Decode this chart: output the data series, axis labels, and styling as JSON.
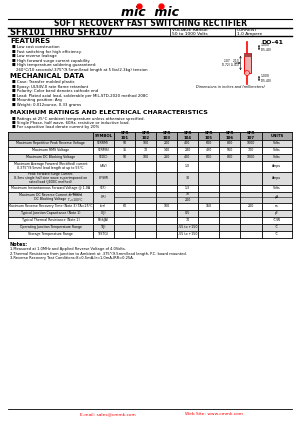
{
  "title": "SOFT RECOVERY FAST SWITCHING RECTIFIER",
  "part_number": "SFR101 THRU SFR107",
  "voltage_range_label": "VOLTAGE RANGE",
  "voltage_range_val": "50 to 1000 Volts",
  "current_label": "CURRENT",
  "current_val": "1.0 Ampere",
  "package": "DO-41",
  "features_title": "FEATURES",
  "features": [
    "Low cost construction",
    "Fast switching for high efficiency.",
    "Low reverse leakage",
    "High forward surge current capability",
    "High temperature soldering guaranteed:",
    "260°C/10 seconds/.375\"(9.5mm)lead length at 5 lbs(2.3kg) tension"
  ],
  "mech_title": "MECHANICAL DATA",
  "mech": [
    "Case: Transfer molded plastic",
    "Epoxy: UL94V-0 rate flame retardant",
    "Polarity: Color band denotes cathode end",
    "Lead: Plated axial lead, solderable per MIL-STD-2020 method 208C",
    "Mounting position: Any",
    "Weight: 0.012ounce, 0.33 grams"
  ],
  "ratings_title": "MAXIMUM RATINGS AND ELECTRICAL CHARACTERISTICS",
  "ratings_notes": [
    "Ratings at 25°C ambient temperature unless otherwise specified.",
    "Single Phase, half wave, 60Hz, resistive or inductive load.",
    "For capacitive load derate current by 20%"
  ],
  "table_params": [
    "Maximum Repetitive Peak Reverse Voltage",
    "Maximum RMS Voltage",
    "Maximum DC Blocking Voltage",
    "Maximum Average Forward (Rectified) current\n0.375\"(9.5mm) lead length at up to 55°C",
    "Peak Forward Surge Current\n8.3ms single half sine wave superimposed on\nrated load (JEDEC method)",
    "Maximum Instantaneous Forward Voltage @ 1.0A",
    "Maximum DC Reverse Current at Rated\nDC Blocking Voltage",
    "Maximum Reverse Recovery Time (Note 3) TA=25°C",
    "Typical Junction Capacitance (Note 1)",
    "Typical Thermal Resistance (Note 2)",
    "Operating Junction Temperature Range",
    "Storage Temperature Range"
  ],
  "table_syms": [
    "V(RRM)",
    "V(RMS)",
    "V(DC)",
    "I(AV)",
    "I(FSM)",
    "V(F)",
    "I(R)",
    "t(rr)",
    "C(J)",
    "R(thJA)",
    "T(J)",
    "T(STG)"
  ],
  "table_sym_sub": [
    null,
    null,
    null,
    null,
    null,
    null,
    [
      "Tₐ=25°C",
      "Tₐ=100°C"
    ],
    null,
    null,
    null,
    null,
    null
  ],
  "table_vals": [
    [
      "50",
      "100",
      "200",
      "400",
      "600",
      "800",
      "1000"
    ],
    [
      "35",
      "70",
      "140",
      "280",
      "420",
      "560",
      "700"
    ],
    [
      "50",
      "100",
      "200",
      "400",
      "600",
      "800",
      "1000"
    ],
    [
      "",
      "",
      "",
      "1.0",
      "",
      "",
      ""
    ],
    [
      "",
      "",
      "",
      "30",
      "",
      "",
      ""
    ],
    [
      "",
      "",
      "",
      "1.3",
      "",
      "",
      ""
    ],
    [
      "",
      "",
      "",
      "10",
      "",
      "",
      ""
    ],
    [
      "60",
      "",
      "100",
      "",
      "150",
      "",
      "200"
    ],
    [
      "",
      "",
      "",
      "0.5",
      "",
      "",
      ""
    ],
    [
      "",
      "",
      "",
      "70",
      "",
      "",
      ""
    ],
    [
      "",
      "",
      "",
      "-55 to +150",
      "",
      "",
      ""
    ],
    [
      "",
      "",
      "",
      "-55 to +150",
      "",
      "",
      ""
    ]
  ],
  "table_vals2": [
    null,
    null,
    null,
    null,
    null,
    null,
    [
      "",
      "",
      "",
      "200",
      "",
      "",
      ""
    ],
    null,
    null,
    null,
    null,
    null
  ],
  "table_units": [
    "Volts",
    "Volts",
    "Volts",
    "Amps",
    "Amps",
    "Volts",
    "μA",
    "ns",
    "pF",
    "°C/W",
    "°C",
    "°C"
  ],
  "table_row_heights": [
    8,
    7,
    7,
    7,
    11,
    13,
    7,
    11,
    7,
    7,
    7,
    7,
    7
  ],
  "notes_title": "Notes:",
  "notes": [
    "1.Measured at 1.0MHz and Applied Reverse Voltage of 4.0Volts.",
    "2.Thermal Resistance from junction to Ambient at .375\"(9.5mm)lead length, P.C. board mounted.",
    "3.Reverse Recovery Test Conditions:If=0.5mA,Ir=1.0mA,IRR=0.25A."
  ],
  "footer_email": "E-mail: sales@cmmk.com",
  "footer_web": "Web Site: www.cmmk.com",
  "bg_color": "#ffffff",
  "lc": "#000000",
  "hdr_bg": "#aaaaaa",
  "alt_bg": "#dddddd"
}
